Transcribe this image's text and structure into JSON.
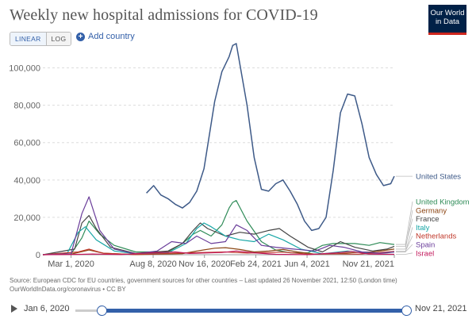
{
  "title": "Weekly new hospital admissions for COVID-19",
  "logo": {
    "line1": "Our World",
    "line2": "in Data"
  },
  "controls": {
    "linear_label": "LINEAR",
    "log_label": "LOG",
    "add_country_label": "Add country"
  },
  "source": {
    "line1": "Source: European CDC for EU countries, government sources for other countries – Last updated 26 November 2021, 12:50 (London time)",
    "line2": "OurWorldInData.org/coronavirus • CC BY"
  },
  "timeline": {
    "start_label": "Jan 6, 2020",
    "end_label": "Nov 21, 2021"
  },
  "colors": {
    "accent": "#3360a9",
    "logo_bg": "#002147",
    "logo_red": "#ce261e"
  },
  "chart_data": {
    "type": "line",
    "title": "Weekly new hospital admissions for COVID-19",
    "xlabel": "",
    "ylabel": "",
    "x_start": "2020-01-06",
    "x_end": "2021-11-21",
    "x_ticks": [
      {
        "date": "2020-03-01",
        "label": "Mar 1, 2020"
      },
      {
        "date": "2020-08-08",
        "label": "Aug 8, 2020"
      },
      {
        "date": "2020-11-16",
        "label": "Nov 16, 2020"
      },
      {
        "date": "2021-02-24",
        "label": "Feb 24, 2021"
      },
      {
        "date": "2021-06-04",
        "label": "Jun 4, 2021"
      },
      {
        "date": "2021-11-21",
        "label": "Nov 21, 2021"
      }
    ],
    "ylim": [
      0,
      110000
    ],
    "y_ticks": [
      {
        "value": 0,
        "label": "0"
      },
      {
        "value": 20000,
        "label": "20,000"
      },
      {
        "value": 40000,
        "label": "40,000"
      },
      {
        "value": 60000,
        "label": "60,000"
      },
      {
        "value": 80000,
        "label": "80,000"
      },
      {
        "value": 100000,
        "label": "100,000"
      }
    ],
    "grid": true,
    "legend": "right, inline labels",
    "series": [
      {
        "name": "United States",
        "color": "#3e5a88",
        "dates": [
          "2020-07-26",
          "2020-08-09",
          "2020-08-23",
          "2020-09-06",
          "2020-09-20",
          "2020-10-04",
          "2020-10-18",
          "2020-11-01",
          "2020-11-15",
          "2020-11-29",
          "2020-12-06",
          "2020-12-20",
          "2021-01-03",
          "2021-01-10",
          "2021-01-17",
          "2021-02-07",
          "2021-02-21",
          "2021-03-07",
          "2021-03-21",
          "2021-04-04",
          "2021-04-18",
          "2021-05-02",
          "2021-05-16",
          "2021-05-30",
          "2021-06-13",
          "2021-06-27",
          "2021-07-11",
          "2021-07-25",
          "2021-08-08",
          "2021-08-22",
          "2021-09-05",
          "2021-09-19",
          "2021-10-03",
          "2021-10-17",
          "2021-10-31",
          "2021-11-14",
          "2021-11-21"
        ],
        "values": [
          33000,
          37000,
          32000,
          30000,
          27000,
          25000,
          28000,
          34000,
          46000,
          70000,
          82000,
          98000,
          106000,
          112000,
          113000,
          80000,
          52000,
          35000,
          34000,
          38000,
          40000,
          34000,
          27000,
          18000,
          13000,
          14000,
          20000,
          45000,
          76000,
          86000,
          85000,
          70000,
          52000,
          43000,
          37000,
          38000,
          42000
        ]
      },
      {
        "name": "United Kingdom",
        "color": "#2e8b57",
        "dates": [
          "2020-01-06",
          "2020-03-01",
          "2020-03-22",
          "2020-04-05",
          "2020-04-26",
          "2020-05-24",
          "2020-07-05",
          "2020-09-06",
          "2020-10-04",
          "2020-10-25",
          "2020-11-08",
          "2020-11-29",
          "2020-12-20",
          "2021-01-03",
          "2021-01-10",
          "2021-01-17",
          "2021-02-07",
          "2021-03-07",
          "2021-04-04",
          "2021-05-02",
          "2021-06-06",
          "2021-07-04",
          "2021-07-25",
          "2021-09-05",
          "2021-10-03",
          "2021-10-24",
          "2021-11-21"
        ],
        "values": [
          0,
          500,
          9000,
          18000,
          11000,
          5000,
          1500,
          1500,
          6000,
          11000,
          13000,
          10000,
          16000,
          25000,
          28000,
          29000,
          18000,
          7000,
          2500,
          1000,
          1000,
          5000,
          6000,
          6000,
          5000,
          6500,
          5500
        ]
      },
      {
        "name": "Germany",
        "color": "#8b4513",
        "dates": [
          "2020-01-06",
          "2020-03-01",
          "2020-04-05",
          "2020-05-03",
          "2020-07-05",
          "2020-10-04",
          "2020-11-01",
          "2020-12-06",
          "2020-12-27",
          "2021-01-24",
          "2021-02-21",
          "2021-03-21",
          "2021-04-18",
          "2021-05-16",
          "2021-06-20",
          "2021-08-01",
          "2021-09-05",
          "2021-10-10",
          "2021-11-07",
          "2021-11-21"
        ],
        "values": [
          0,
          300,
          2500,
          800,
          100,
          600,
          2000,
          3500,
          3800,
          2800,
          1500,
          2000,
          2800,
          1500,
          300,
          500,
          1200,
          1500,
          2500,
          3000
        ]
      },
      {
        "name": "France",
        "color": "#444444",
        "dates": [
          "2020-01-06",
          "2020-03-08",
          "2020-03-22",
          "2020-04-05",
          "2020-04-19",
          "2020-05-17",
          "2020-07-05",
          "2020-09-06",
          "2020-10-04",
          "2020-10-25",
          "2020-11-08",
          "2020-11-22",
          "2020-12-27",
          "2021-01-24",
          "2021-02-21",
          "2021-03-21",
          "2021-04-11",
          "2021-05-02",
          "2021-06-06",
          "2021-07-04",
          "2021-08-08",
          "2021-09-05",
          "2021-10-10",
          "2021-11-07",
          "2021-11-21"
        ],
        "values": [
          0,
          3000,
          17000,
          21000,
          14000,
          4000,
          700,
          2000,
          6000,
          13000,
          17000,
          14000,
          10000,
          12000,
          11000,
          13000,
          14000,
          10000,
          4000,
          1500,
          7000,
          4000,
          2000,
          3000,
          4500
        ]
      },
      {
        "name": "Italy",
        "color": "#17a6a6",
        "dates": [
          "2020-01-06",
          "2020-02-23",
          "2020-03-15",
          "2020-03-29",
          "2020-04-19",
          "2020-05-24",
          "2020-07-05",
          "2020-09-06",
          "2020-10-11",
          "2020-11-01",
          "2020-11-15",
          "2020-11-29",
          "2020-12-27",
          "2021-01-24",
          "2021-02-21",
          "2021-03-21",
          "2021-04-18",
          "2021-05-23",
          "2021-07-04",
          "2021-08-22",
          "2021-10-03",
          "2021-11-07",
          "2021-11-21"
        ],
        "values": [
          0,
          1000,
          12000,
          15000,
          8000,
          2000,
          500,
          1000,
          6000,
          14000,
          17000,
          15000,
          10000,
          8000,
          7000,
          11000,
          8000,
          3000,
          500,
          2000,
          800,
          1000,
          1500
        ]
      },
      {
        "name": "Netherlands",
        "color": "#c0392b",
        "dates": [
          "2020-01-06",
          "2020-03-15",
          "2020-04-05",
          "2020-05-03",
          "2020-07-05",
          "2020-10-11",
          "2020-11-08",
          "2020-12-27",
          "2021-02-07",
          "2021-04-18",
          "2021-06-06",
          "2021-07-25",
          "2021-09-12",
          "2021-10-24",
          "2021-11-21"
        ],
        "values": [
          0,
          1500,
          3000,
          800,
          100,
          1000,
          1200,
          1500,
          900,
          1400,
          300,
          500,
          300,
          1200,
          1800
        ]
      },
      {
        "name": "Spain",
        "color": "#6a3d9a",
        "dates": [
          "2020-01-06",
          "2020-03-01",
          "2020-03-22",
          "2020-04-05",
          "2020-04-26",
          "2020-05-24",
          "2020-07-05",
          "2020-08-16",
          "2020-09-13",
          "2020-10-11",
          "2020-11-01",
          "2020-11-29",
          "2020-12-27",
          "2021-01-17",
          "2021-02-07",
          "2021-03-07",
          "2021-04-04",
          "2021-05-09",
          "2021-06-20",
          "2021-07-18",
          "2021-08-15",
          "2021-09-19",
          "2021-10-24",
          "2021-11-21"
        ],
        "values": [
          0,
          500,
          22000,
          31000,
          13000,
          3000,
          500,
          2000,
          7000,
          6000,
          10000,
          6000,
          7000,
          16000,
          13000,
          5000,
          4000,
          3000,
          2000,
          5000,
          4000,
          1500,
          800,
          1500
        ]
      },
      {
        "name": "Israel",
        "color": "#c2185b",
        "dates": [
          "2020-01-06",
          "2020-03-22",
          "2020-04-12",
          "2020-06-07",
          "2020-07-19",
          "2020-09-20",
          "2020-10-18",
          "2020-12-20",
          "2021-01-17",
          "2021-02-21",
          "2021-04-04",
          "2021-06-06",
          "2021-08-01",
          "2021-08-29",
          "2021-10-03",
          "2021-11-21"
        ],
        "values": [
          0,
          200,
          400,
          100,
          800,
          1500,
          700,
          1200,
          2000,
          1000,
          200,
          50,
          1000,
          1800,
          400,
          200
        ]
      }
    ]
  }
}
